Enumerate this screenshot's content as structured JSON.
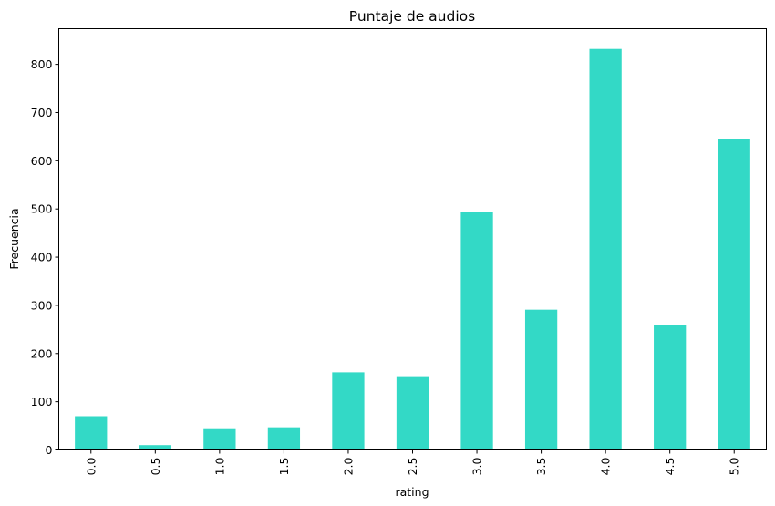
{
  "chart_data": {
    "type": "bar",
    "title": "Puntaje de audios",
    "xlabel": "rating",
    "ylabel": "Frecuencia",
    "categories": [
      "0.0",
      "0.5",
      "1.0",
      "1.5",
      "2.0",
      "2.5",
      "3.0",
      "3.5",
      "4.0",
      "4.5",
      "5.0"
    ],
    "values": [
      70,
      10,
      45,
      47,
      161,
      153,
      493,
      291,
      832,
      259,
      645
    ],
    "ylim": [
      0,
      874
    ],
    "yticks": [
      0,
      100,
      200,
      300,
      400,
      500,
      600,
      700,
      800
    ],
    "bar_color": "#33d9c6",
    "grid": false,
    "legend": "none"
  }
}
